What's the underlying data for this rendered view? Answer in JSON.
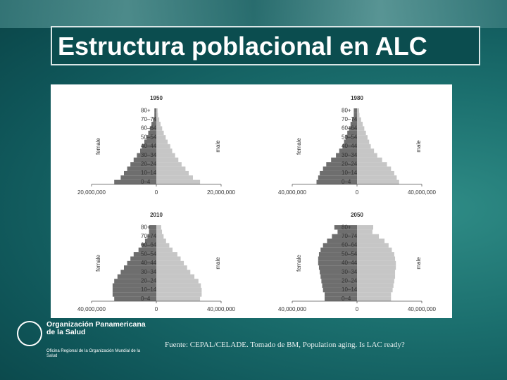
{
  "title": "Estructura poblacional en ALC",
  "source": "Fuente: CEPAL/CELADE. Tomado de BM, Population aging. Is LAC ready?",
  "logo": {
    "name": "Organización Panamericana de la Salud",
    "subtitle": "Oficina Regional de la Organización Mundial de la Salud"
  },
  "chart_data": [
    {
      "type": "pyramid",
      "title": "1950",
      "categories": [
        "0–4",
        null,
        "10–14",
        null,
        "20–24",
        null,
        "30–34",
        null,
        "40–44",
        null,
        "50–54",
        null,
        "60–64",
        null,
        "70–74",
        null,
        "80+"
      ],
      "series": [
        {
          "name": "female",
          "color": "#6e6e6e",
          "values": [
            13000000,
            11000000,
            10000000,
            9000000,
            8000000,
            7000000,
            6000000,
            5000000,
            4500000,
            3700000,
            3000000,
            2500000,
            2000000,
            1500000,
            1000000,
            600000,
            600000
          ]
        },
        {
          "name": "male",
          "color": "#c6c6c6",
          "values": [
            13500000,
            11300000,
            10000000,
            9000000,
            7800000,
            6800000,
            5800000,
            4900000,
            4300000,
            3500000,
            2900000,
            2300000,
            1800000,
            1300000,
            900000,
            500000,
            400000
          ]
        }
      ],
      "xlim": [
        -20000000,
        20000000
      ],
      "xticks": [
        {
          "value": -20000000,
          "label": "20,000,000"
        },
        0,
        {
          "value": 20000000,
          "label": "20,000,000"
        }
      ]
    },
    {
      "type": "pyramid",
      "title": "1980",
      "categories": [
        "0–4",
        null,
        "10–14",
        null,
        "20–24",
        null,
        "30–34",
        null,
        "40–44",
        null,
        "50–54",
        null,
        "60–64",
        null,
        "70–74",
        null,
        "80+"
      ],
      "series": [
        {
          "name": "female",
          "color": "#6e6e6e",
          "values": [
            25000000,
            24000000,
            23000000,
            21000000,
            19000000,
            16000000,
            13000000,
            11000000,
            9000000,
            8000000,
            7000000,
            6000000,
            5000000,
            4000000,
            3000000,
            2000000,
            2000000
          ]
        },
        {
          "name": "male",
          "color": "#c6c6c6",
          "values": [
            26000000,
            24500000,
            23000000,
            21000000,
            18500000,
            15500000,
            12500000,
            10500000,
            8500000,
            7500000,
            6500000,
            5500000,
            4500000,
            3500000,
            2500000,
            1500000,
            1300000
          ]
        }
      ],
      "xlim": [
        -40000000,
        40000000
      ],
      "xticks": [
        {
          "value": -40000000,
          "label": "40,000,000"
        },
        0,
        {
          "value": 40000000,
          "label": "40,000,000"
        }
      ]
    },
    {
      "type": "pyramid",
      "title": "2010",
      "categories": [
        "0–4",
        null,
        "10–14",
        null,
        "20–24",
        null,
        "30–34",
        null,
        "40–44",
        null,
        "50–54",
        null,
        "60–64",
        null,
        "70–74",
        null,
        "80+"
      ],
      "series": [
        {
          "name": "female",
          "color": "#6e6e6e",
          "values": [
            26000000,
            27000000,
            27000000,
            27000000,
            26000000,
            24000000,
            22000000,
            20000000,
            18000000,
            16000000,
            14000000,
            11000000,
            9000000,
            7000000,
            5500000,
            4500000,
            4500000
          ]
        },
        {
          "name": "male",
          "color": "#c6c6c6",
          "values": [
            27000000,
            28000000,
            28000000,
            27500000,
            26000000,
            23500000,
            21000000,
            19000000,
            17000000,
            15000000,
            13000000,
            10000000,
            8000000,
            6000000,
            4500000,
            3500000,
            3000000
          ]
        }
      ],
      "xlim": [
        -40000000,
        40000000
      ],
      "xticks": [
        {
          "value": -40000000,
          "label": "40,000,000"
        },
        0,
        {
          "value": 40000000,
          "label": "40,000,000"
        }
      ]
    },
    {
      "type": "pyramid",
      "title": "2050",
      "categories": [
        "0–4",
        null,
        "10–14",
        null,
        "20–24",
        null,
        "30–34",
        null,
        "40–44",
        null,
        "50–54",
        null,
        "60–64",
        null,
        "70–74",
        null,
        "80+"
      ],
      "series": [
        {
          "name": "female",
          "color": "#6e6e6e",
          "values": [
            20000000,
            20000000,
            21000000,
            21500000,
            22000000,
            22500000,
            23000000,
            23500000,
            24000000,
            24000000,
            23500000,
            22500000,
            21000000,
            18500000,
            15500000,
            12000000,
            14000000
          ]
        },
        {
          "name": "male",
          "color": "#c6c6c6",
          "values": [
            21000000,
            21000000,
            22000000,
            22500000,
            23000000,
            23500000,
            23500000,
            24000000,
            24000000,
            23500000,
            23000000,
            21500000,
            19500000,
            17000000,
            13500000,
            9500000,
            10000000
          ]
        }
      ],
      "xlim": [
        -40000000,
        40000000
      ],
      "xticks": [
        {
          "value": -40000000,
          "label": "40,000,000"
        },
        0,
        {
          "value": 40000000,
          "label": "40,000,000"
        }
      ]
    }
  ]
}
